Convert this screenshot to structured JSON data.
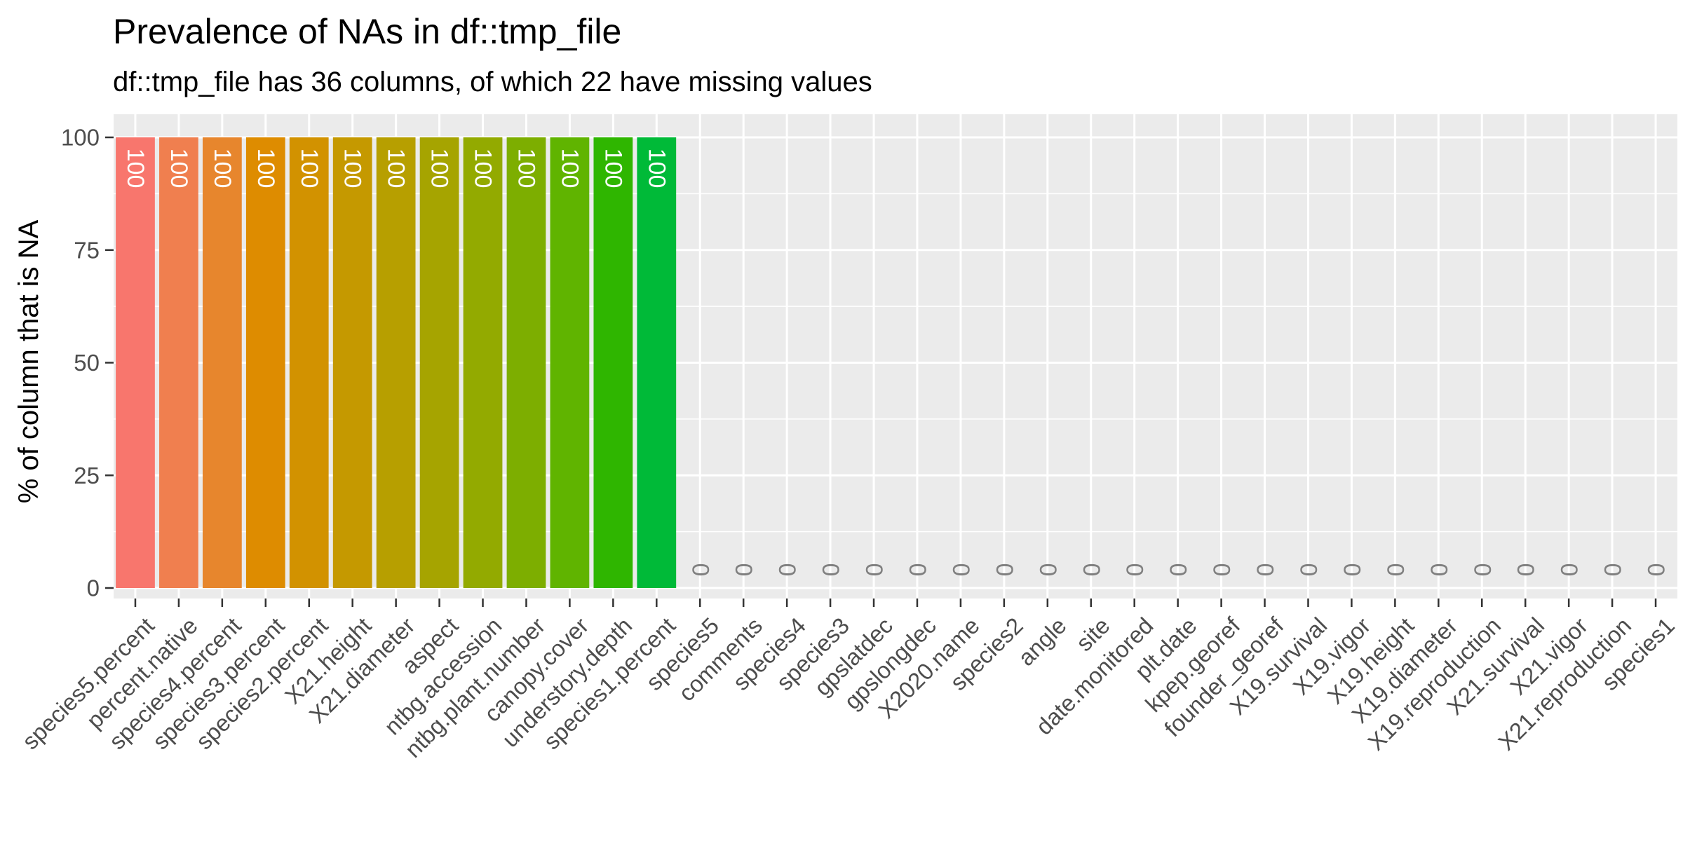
{
  "chart_data": {
    "type": "bar",
    "title": "Prevalence of NAs in df::tmp_file",
    "subtitle": "df::tmp_file has 36 columns, of which 22 have missing values",
    "xlabel": "",
    "ylabel": "% of column that is NA",
    "ylim": [
      0,
      100
    ],
    "yticks": [
      0,
      25,
      50,
      75,
      100
    ],
    "grid": true,
    "legend": "none",
    "categories": [
      "species5.percent",
      "percent.native",
      "species4.percent",
      "species3.percent",
      "species2.percent",
      "X21.height",
      "X21.diameter",
      "aspect",
      "ntbg.accession",
      "ntbg.plant.number",
      "canopy.cover",
      "understory.depth",
      "species1.percent",
      "species5",
      "comments",
      "species4",
      "species3",
      "gpslatdec",
      "gpslongdec",
      "X2020.name",
      "species2",
      "angle",
      "site",
      "date.monitored",
      "plt.date",
      "kpep.georef",
      "founder_georef",
      "X19.survival",
      "X19.vigor",
      "X19.height",
      "X19.diameter",
      "X19.reproduction",
      "X21.survival",
      "X21.vigor",
      "X21.reproduction",
      "species1"
    ],
    "values": [
      100,
      100,
      100,
      100,
      100,
      100,
      100,
      100,
      100,
      100,
      100,
      100,
      100,
      0,
      0,
      0,
      0,
      0,
      0,
      0,
      0,
      0,
      0,
      0,
      0,
      0,
      0,
      0,
      0,
      0,
      0,
      0,
      0,
      0,
      0,
      0
    ],
    "bar_labels": [
      "100",
      "100",
      "100",
      "100",
      "100",
      "100",
      "100",
      "100",
      "100",
      "100",
      "100",
      "100",
      "100",
      "0",
      "0",
      "0",
      "0",
      "0",
      "0",
      "0",
      "0",
      "0",
      "0",
      "0",
      "0",
      "0",
      "0",
      "0",
      "0",
      "0",
      "0",
      "0",
      "0",
      "0",
      "0",
      "0"
    ],
    "bar_colors": [
      "#F8766D",
      "#F07F4F",
      "#E7862D",
      "#DE8C00",
      "#D29200",
      "#C59900",
      "#B79F00",
      "#A6A400",
      "#93AA00",
      "#7DAE00",
      "#60B400",
      "#2FB600",
      "#00BA38"
    ],
    "colors": {
      "panel_background": "#EBEBEB",
      "grid": "#FFFFFF",
      "axis_text": "#4D4D4D",
      "bar_label_on_bar": "#FFFFFF",
      "bar_label_zero": "#808080"
    }
  }
}
